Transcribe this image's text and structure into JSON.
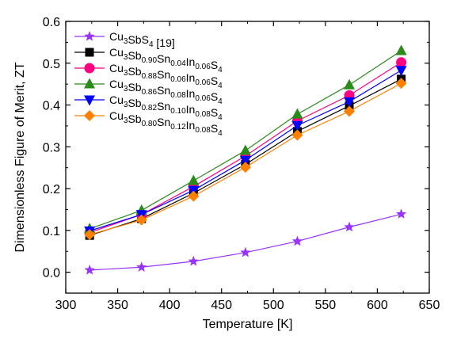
{
  "chart_data": {
    "type": "line",
    "xlabel": "Temperature [K]",
    "ylabel": "Dimensionless Figure of Merit, ZT",
    "xlim": [
      300,
      650
    ],
    "ylim": [
      -0.05,
      0.6
    ],
    "xticks": [
      "300",
      "350",
      "400",
      "450",
      "500",
      "550",
      "600",
      "650"
    ],
    "yticks": [
      "0.0",
      "0.1",
      "0.2",
      "0.3",
      "0.4",
      "0.5",
      "0.6"
    ],
    "legend_position": "top-left",
    "x": [
      323,
      373,
      423,
      473,
      523,
      573,
      623
    ],
    "series": [
      {
        "name": "Cu3SbS4 [19]",
        "name_parts": [
          [
            "Cu",
            ""
          ],
          [
            "3",
            "sub"
          ],
          [
            "SbS",
            ""
          ],
          [
            "4",
            "sub"
          ],
          [
            " [19]",
            ""
          ]
        ],
        "marker": "star",
        "color": "#9933ff",
        "values": [
          0.005,
          0.012,
          0.026,
          0.047,
          0.074,
          0.108,
          0.139
        ]
      },
      {
        "name": "Cu3Sb0.90Sn0.04In0.06S4",
        "name_parts": [
          [
            "Cu",
            ""
          ],
          [
            "3",
            "sub"
          ],
          [
            "Sb",
            ""
          ],
          [
            "0.90",
            "sub"
          ],
          [
            "Sn",
            ""
          ],
          [
            "0.04",
            "sub"
          ],
          [
            "In",
            ""
          ],
          [
            "0.06",
            "sub"
          ],
          [
            "S",
            ""
          ],
          [
            "4",
            "sub"
          ]
        ],
        "marker": "square",
        "color": "#000000",
        "values": [
          0.088,
          0.128,
          0.189,
          0.258,
          0.337,
          0.398,
          0.462
        ]
      },
      {
        "name": "Cu3Sb0.88Sn0.06In0.06S4",
        "name_parts": [
          [
            "Cu",
            ""
          ],
          [
            "3",
            "sub"
          ],
          [
            "Sb",
            ""
          ],
          [
            "0.88",
            "sub"
          ],
          [
            "Sn",
            ""
          ],
          [
            "0.06",
            "sub"
          ],
          [
            "In",
            ""
          ],
          [
            "0.06",
            "sub"
          ],
          [
            "S",
            ""
          ],
          [
            "4",
            "sub"
          ]
        ],
        "marker": "circle",
        "color": "#ff0080",
        "values": [
          0.095,
          0.138,
          0.205,
          0.278,
          0.362,
          0.423,
          0.502
        ]
      },
      {
        "name": "Cu3Sb0.86Sn0.08In0.06S4",
        "name_parts": [
          [
            "Cu",
            ""
          ],
          [
            "3",
            "sub"
          ],
          [
            "Sb",
            ""
          ],
          [
            "0.86",
            "sub"
          ],
          [
            "Sn",
            ""
          ],
          [
            "0.08",
            "sub"
          ],
          [
            "In",
            ""
          ],
          [
            "0.06",
            "sub"
          ],
          [
            "S",
            ""
          ],
          [
            "4",
            "sub"
          ]
        ],
        "marker": "triangle-up",
        "color": "#2a8a1a",
        "values": [
          0.104,
          0.148,
          0.219,
          0.291,
          0.378,
          0.448,
          0.53
        ]
      },
      {
        "name": "Cu3Sb0.82Sn0.10In0.08S4",
        "name_parts": [
          [
            "Cu",
            ""
          ],
          [
            "3",
            "sub"
          ],
          [
            "Sb",
            ""
          ],
          [
            "0.82",
            "sub"
          ],
          [
            "Sn",
            ""
          ],
          [
            "0.10",
            "sub"
          ],
          [
            "In",
            ""
          ],
          [
            "0.08",
            "sub"
          ],
          [
            "S",
            ""
          ],
          [
            "4",
            "sub"
          ]
        ],
        "marker": "triangle-down",
        "color": "#0000ff",
        "values": [
          0.099,
          0.138,
          0.196,
          0.268,
          0.351,
          0.408,
          0.483
        ]
      },
      {
        "name": "Cu3Sb0.80Sn0.12In0.08S4",
        "name_parts": [
          [
            "Cu",
            ""
          ],
          [
            "3",
            "sub"
          ],
          [
            "Sb",
            ""
          ],
          [
            "0.80",
            "sub"
          ],
          [
            "Sn",
            ""
          ],
          [
            "0.12",
            "sub"
          ],
          [
            "In",
            ""
          ],
          [
            "0.08",
            "sub"
          ],
          [
            "S",
            ""
          ],
          [
            "4",
            "sub"
          ]
        ],
        "marker": "diamond",
        "color": "#ff8000",
        "values": [
          0.09,
          0.125,
          0.182,
          0.251,
          0.328,
          0.385,
          0.452
        ]
      }
    ]
  }
}
